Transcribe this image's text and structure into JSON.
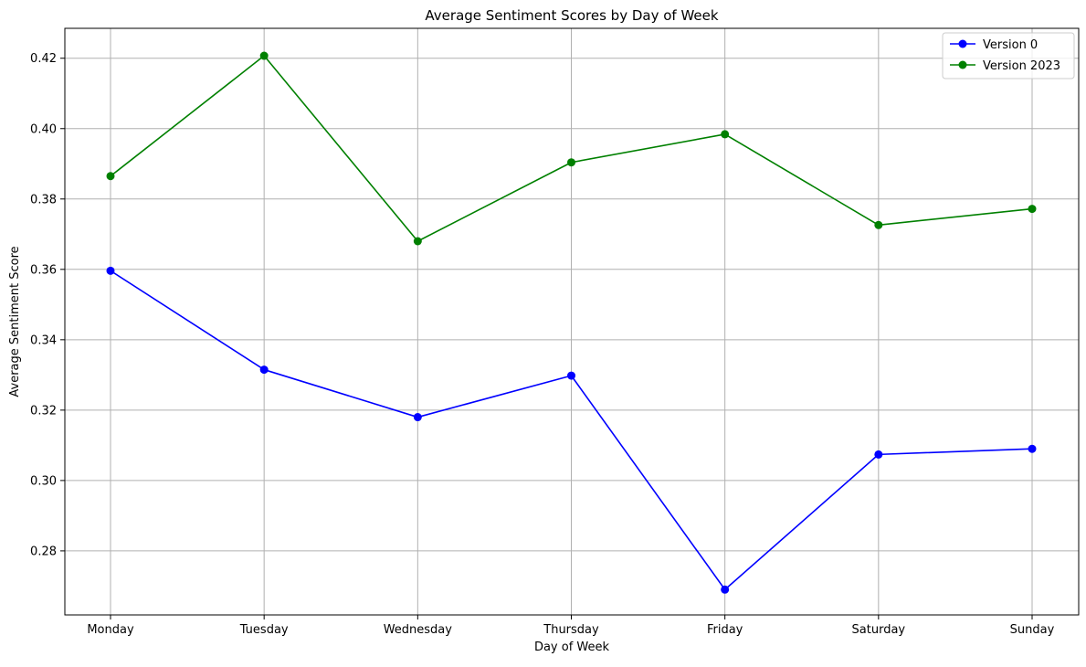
{
  "chart_data": {
    "type": "line",
    "title": "Average Sentiment Scores by Day of Week",
    "xlabel": "Day of Week",
    "ylabel": "Average Sentiment Score",
    "categories": [
      "Monday",
      "Tuesday",
      "Wednesday",
      "Thursday",
      "Friday",
      "Saturday",
      "Sunday"
    ],
    "ylim": [
      0.2618,
      0.4285
    ],
    "yticks": [
      0.28,
      0.3,
      0.32,
      0.34,
      0.36,
      0.38,
      0.4,
      0.42
    ],
    "ytick_labels": [
      "0.28",
      "0.30",
      "0.32",
      "0.34",
      "0.36",
      "0.38",
      "0.40",
      "0.42"
    ],
    "grid": true,
    "legend_position": "upper-right",
    "series": [
      {
        "name": "Version 0",
        "color": "#0000ff",
        "marker": "circle",
        "values": [
          0.3596,
          0.3315,
          0.318,
          0.3298,
          0.269,
          0.3074,
          0.309
        ]
      },
      {
        "name": "Version 2023",
        "color": "#008000",
        "marker": "circle",
        "values": [
          0.3865,
          0.4207,
          0.368,
          0.3904,
          0.3984,
          0.3726,
          0.3772
        ]
      }
    ]
  }
}
